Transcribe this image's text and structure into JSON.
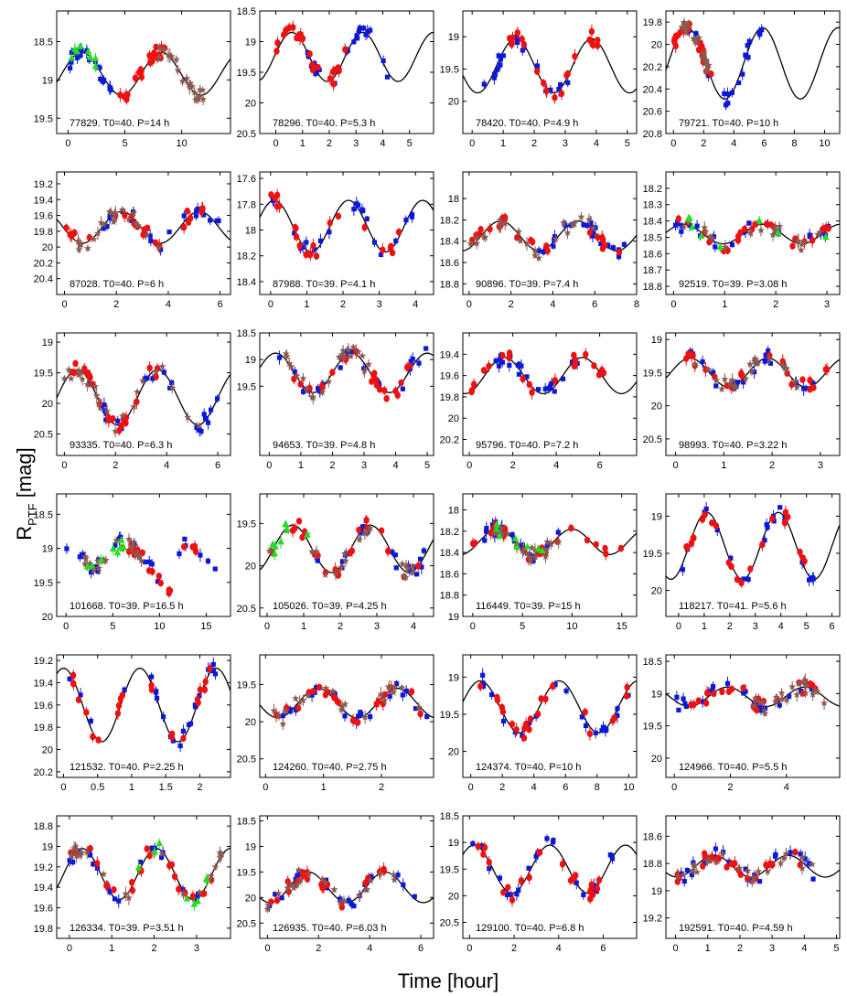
{
  "figure": {
    "ylabel_main": "R",
    "ylabel_sub": "PTF",
    "ylabel_unit": "[mag]",
    "xlabel": "Time [hour]",
    "legend_note": "blue squares, red circles, brown stars, green triangles = separate observing nights"
  },
  "colors": {
    "series": [
      "#0b18d6",
      "#ee1111",
      "#8a5a50",
      "#22dd22"
    ],
    "model": "#000000"
  },
  "chart_data": [
    {
      "type": "scatter",
      "label": "77829. T0=40. P=14 h",
      "id": "77829",
      "T0": 40,
      "period_h": 14,
      "xlim": [
        -1,
        14.3
      ],
      "xticks": [
        0,
        5,
        10
      ],
      "ylim": [
        18.1,
        19.7
      ],
      "yticks": [
        18.5,
        19,
        19.5
      ],
      "yticklabels": [
        "18.5",
        "19",
        "19.5"
      ],
      "model": {
        "mean": 18.92,
        "amp": 0.28,
        "period": 7,
        "phase": 1.2
      },
      "coverage": [
        [
          0,
          4
        ],
        [
          4.5,
          8.5
        ],
        [
          8,
          12
        ],
        [
          0,
          3
        ]
      ],
      "seed": 11
    },
    {
      "type": "scatter",
      "label": "78296. T0=40. P=5.3 h",
      "id": "78296",
      "T0": 40,
      "period_h": 5.3,
      "xlim": [
        -0.6,
        5.9
      ],
      "xticks": [
        0,
        1,
        2,
        3,
        4,
        5
      ],
      "ylim": [
        18.5,
        20.5
      ],
      "yticks": [
        18.5,
        19,
        19.5,
        20,
        20.5
      ],
      "yticklabels": [
        "18.5",
        "19",
        "19.5",
        "20",
        "20.5"
      ],
      "model": {
        "mean": 19.25,
        "amp": 0.4,
        "period": 2.65,
        "phase": 0.6
      },
      "coverage": [
        [
          1,
          4.8
        ],
        [
          0,
          2.6
        ]
      ],
      "seed": 12
    },
    {
      "type": "scatter",
      "label": "78420. T0=40. P=4.9 h",
      "id": "78420",
      "T0": 40,
      "period_h": 4.9,
      "xlim": [
        -0.3,
        5.3
      ],
      "xticks": [
        0,
        1,
        2,
        3,
        4,
        5
      ],
      "ylim": [
        18.6,
        20.5
      ],
      "yticks": [
        19,
        19.5,
        20
      ],
      "yticklabels": [
        "19",
        "19.5",
        "20"
      ],
      "model": {
        "mean": 19.45,
        "amp": 0.42,
        "period": 2.45,
        "phase": 1.4
      },
      "coverage": [
        [
          0.3,
          3.5
        ],
        [
          1.2,
          4.2
        ]
      ],
      "seed": 13
    },
    {
      "type": "scatter",
      "label": "79721. T0=40. P=10 h",
      "id": "79721",
      "T0": 40,
      "period_h": 10,
      "xlim": [
        -0.5,
        11
      ],
      "xticks": [
        0,
        2,
        4,
        6,
        8,
        10
      ],
      "ylim": [
        19.7,
        20.8
      ],
      "yticks": [
        19.8,
        20,
        20.2,
        20.4,
        20.6,
        20.8
      ],
      "yticklabels": [
        "19.8",
        "20",
        "20.2",
        "20.4",
        "20.6",
        "20.8"
      ],
      "model": {
        "mean": 20.17,
        "amp": 0.32,
        "period": 5,
        "phase": 0.9
      },
      "coverage": [
        [
          1,
          6
        ],
        [
          0,
          2.5
        ],
        [
          0.5,
          2.5
        ]
      ],
      "seed": 14
    },
    {
      "type": "scatter",
      "label": "87028. T0=40. P=6 h",
      "id": "87028",
      "T0": 40,
      "period_h": 6,
      "xlim": [
        -0.3,
        6.4
      ],
      "xticks": [
        0,
        2,
        4,
        6
      ],
      "ylim": [
        19.05,
        20.6
      ],
      "yticks": [
        19.2,
        19.4,
        19.6,
        19.8,
        20,
        20.2,
        20.4
      ],
      "yticklabels": [
        "19.2",
        "19.4",
        "19.6",
        "19.8",
        "20",
        "20.2",
        "20.4"
      ],
      "model": {
        "mean": 19.75,
        "amp": 0.2,
        "period": 3,
        "phase": 2.2
      },
      "coverage": [
        [
          1.5,
          6
        ],
        [
          0,
          5.5
        ],
        [
          0.5,
          4
        ]
      ],
      "seed": 15
    },
    {
      "type": "scatter",
      "label": "87988. T0=39. P=4.1 h",
      "id": "87988",
      "T0": 39,
      "period_h": 4.1,
      "xlim": [
        -0.3,
        4.5
      ],
      "xticks": [
        0,
        1,
        2,
        3,
        4
      ],
      "ylim": [
        17.55,
        18.5
      ],
      "yticks": [
        17.6,
        17.8,
        18,
        18.2,
        18.4
      ],
      "yticklabels": [
        "17.6",
        "17.8",
        "18",
        "18.2",
        "18.4"
      ],
      "model": {
        "mean": 17.97,
        "amp": 0.2,
        "period": 2.05,
        "phase": 0.1
      },
      "coverage": [
        [
          0,
          4
        ],
        [
          0,
          3.8
        ]
      ],
      "seed": 16
    },
    {
      "type": "scatter",
      "label": "90896. T0=39. P=7.4 h",
      "id": "90896",
      "T0": 39,
      "period_h": 7.4,
      "xlim": [
        -0.3,
        8
      ],
      "xticks": [
        0,
        2,
        4,
        6,
        8
      ],
      "ylim": [
        17.75,
        18.9
      ],
      "yticks": [
        18,
        18.2,
        18.4,
        18.6,
        18.8
      ],
      "yticklabels": [
        "18",
        "18.2",
        "18.4",
        "18.6",
        "18.8"
      ],
      "model": {
        "mean": 18.35,
        "amp": 0.14,
        "period": 3.7,
        "phase": 1.5
      },
      "coverage": [
        [
          3,
          7.5
        ],
        [
          0,
          7.3
        ],
        [
          0,
          6
        ]
      ],
      "seed": 17
    },
    {
      "type": "scatter",
      "label": "92519. T0=39. P=3.08 h",
      "id": "92519",
      "T0": 39,
      "period_h": 3.08,
      "xlim": [
        -0.15,
        3.25
      ],
      "xticks": [
        0,
        1,
        2,
        3
      ],
      "ylim": [
        18.1,
        18.85
      ],
      "yticks": [
        18.2,
        18.3,
        18.4,
        18.5,
        18.6,
        18.7,
        18.8
      ],
      "yticklabels": [
        "18.2",
        "18.3",
        "18.4",
        "18.5",
        "18.6",
        "18.7",
        "18.8"
      ],
      "model": {
        "mean": 18.48,
        "amp": 0.06,
        "period": 1.54,
        "phase": 0.2
      },
      "coverage": [
        [
          0,
          3.1
        ],
        [
          0,
          3.1
        ],
        [
          0,
          3.1
        ],
        [
          0.2,
          3
        ]
      ],
      "seed": 18
    },
    {
      "type": "scatter",
      "label": "93335. T0=40. P=6.3 h",
      "id": "93335",
      "T0": 40,
      "period_h": 6.3,
      "xlim": [
        -0.3,
        6.5
      ],
      "xticks": [
        0,
        2,
        4,
        6
      ],
      "ylim": [
        18.85,
        20.85
      ],
      "yticks": [
        19,
        19.5,
        20,
        20.5
      ],
      "yticklabels": [
        "19",
        "19.5",
        "20",
        "20.5"
      ],
      "model": {
        "mean": 19.9,
        "amp": 0.45,
        "period": 3.15,
        "phase": 0.5
      },
      "coverage": [
        [
          0.5,
          6
        ],
        [
          0,
          3.8
        ],
        [
          0,
          6
        ]
      ],
      "seed": 19
    },
    {
      "type": "scatter",
      "label": "94653. T0=39. P=4.8 h",
      "id": "94653",
      "T0": 39,
      "period_h": 4.8,
      "xlim": [
        -0.3,
        5.2
      ],
      "xticks": [
        0,
        1,
        2,
        3,
        4,
        5
      ],
      "ylim": [
        18.5,
        20.8
      ],
      "yticks": [
        18.5,
        19,
        19.5
      ],
      "yticklabels": [
        "18.5",
        "19",
        "19.5"
      ],
      "model": {
        "mean": 19.25,
        "amp": 0.37,
        "period": 2.4,
        "phase": 0.2
      },
      "coverage": [
        [
          0,
          5
        ],
        [
          0.3,
          4.5
        ],
        [
          0.3,
          3.2
        ]
      ],
      "seed": 20
    },
    {
      "type": "scatter",
      "label": "95796. T0=40. P=7.2 h",
      "id": "95796",
      "T0": 40,
      "period_h": 7.2,
      "xlim": [
        -0.3,
        7.7
      ],
      "xticks": [
        0,
        2,
        4,
        6
      ],
      "ylim": [
        19.2,
        20.35
      ],
      "yticks": [
        19.4,
        19.6,
        19.8,
        20,
        20.2
      ],
      "yticklabels": [
        "19.4",
        "19.6",
        "19.8",
        "20",
        "20.2"
      ],
      "model": {
        "mean": 19.6,
        "amp": 0.17,
        "period": 3.6,
        "phase": 1.6
      },
      "coverage": [
        [
          1,
          5
        ],
        [
          0,
          7
        ]
      ],
      "seed": 21
    },
    {
      "type": "scatter",
      "label": "98993. T0=40. P=3.22 h",
      "id": "98993",
      "T0": 40,
      "period_h": 3.22,
      "xlim": [
        -0.2,
        3.4
      ],
      "xticks": [
        0,
        1,
        2,
        3
      ],
      "ylim": [
        18.9,
        20.75
      ],
      "yticks": [
        19,
        19.5,
        20,
        20.5
      ],
      "yticklabels": [
        "19",
        "19.5",
        "20",
        "20.5"
      ],
      "model": {
        "mean": 19.5,
        "amp": 0.22,
        "period": 1.61,
        "phase": 0.3
      },
      "coverage": [
        [
          0.3,
          3
        ],
        [
          0.2,
          3.2
        ],
        [
          0.3,
          3
        ]
      ],
      "seed": 22
    },
    {
      "type": "scatter",
      "label": "101668. T0=39. P=16.5 h",
      "id": "101668",
      "T0": 39,
      "period_h": 16.5,
      "xlim": [
        -1,
        17.6
      ],
      "xticks": [
        0,
        5,
        10,
        15
      ],
      "ylim": [
        18.2,
        20
      ],
      "yticks": [
        18.5,
        19,
        19.5,
        20
      ],
      "yticklabels": [
        "18.5",
        "19",
        "19.5",
        "20"
      ],
      "model": null,
      "coverage": [
        [
          0,
          17
        ],
        [
          6,
          14.5
        ],
        [
          2,
          9
        ],
        [
          1,
          7
        ]
      ],
      "seed": 23
    },
    {
      "type": "scatter",
      "label": "105026. T0=39. P=4.25 h",
      "id": "105026",
      "T0": 39,
      "period_h": 4.25,
      "xlim": [
        -0.2,
        4.55
      ],
      "xticks": [
        0,
        1,
        2,
        3,
        4
      ],
      "ylim": [
        19.15,
        20.6
      ],
      "yticks": [
        19.5,
        20,
        20.5
      ],
      "yticklabels": [
        "19.5",
        "20",
        "20.5"
      ],
      "model": {
        "mean": 19.8,
        "amp": 0.28,
        "period": 2.12,
        "phase": 0.7
      },
      "coverage": [
        [
          0,
          4.3
        ],
        [
          0,
          4.2
        ],
        [
          0,
          4
        ],
        [
          0,
          2
        ]
      ],
      "seed": 24
    },
    {
      "type": "scatter",
      "label": "116449. T0=39. P=15 h",
      "id": "116449",
      "T0": 39,
      "period_h": 15,
      "xlim": [
        -1,
        16.5
      ],
      "xticks": [
        0,
        5,
        10,
        15
      ],
      "ylim": [
        17.85,
        19
      ],
      "yticks": [
        18,
        18.2,
        18.4,
        18.6,
        18.8,
        19
      ],
      "yticklabels": [
        "18",
        "18.2",
        "18.4",
        "18.6",
        "18.8",
        "19"
      ],
      "model": {
        "mean": 18.3,
        "amp": 0.12,
        "period": 7.5,
        "phase": 2.5
      },
      "coverage": [
        [
          0,
          9
        ],
        [
          0,
          15
        ],
        [
          2,
          9
        ],
        [
          1,
          9
        ]
      ],
      "seed": 25
    },
    {
      "type": "scatter",
      "label": "118217. T0=41. P=5.6 h",
      "id": "118217",
      "T0": 41,
      "period_h": 5.6,
      "xlim": [
        -0.5,
        6.3
      ],
      "xticks": [
        0,
        1,
        2,
        3,
        4,
        5,
        6
      ],
      "ylim": [
        18.7,
        20.35
      ],
      "yticks": [
        19,
        19.5,
        20
      ],
      "yticklabels": [
        "19",
        "19.5",
        "20"
      ],
      "model": {
        "mean": 19.4,
        "amp": 0.45,
        "period": 2.8,
        "phase": 1.1
      },
      "coverage": [
        [
          0,
          5.5
        ],
        [
          0,
          5.5
        ]
      ],
      "seed": 26
    },
    {
      "type": "scatter",
      "label": "121532. T0=40. P=2.25 h",
      "id": "121532",
      "T0": 40,
      "period_h": 2.25,
      "xlim": [
        -0.1,
        2.45
      ],
      "xticks": [
        0,
        0.5,
        1,
        1.5,
        2
      ],
      "ylim": [
        19.15,
        20.25
      ],
      "yticks": [
        19.2,
        19.4,
        19.6,
        19.8,
        20,
        20.2
      ],
      "yticklabels": [
        "19.2",
        "19.4",
        "19.6",
        "19.8",
        "20",
        "20.2"
      ],
      "model": {
        "mean": 19.6,
        "amp": 0.33,
        "period": 1.12,
        "phase": 0.0
      },
      "coverage": [
        [
          0,
          2.3
        ],
        [
          0,
          2.2
        ]
      ],
      "seed": 27
    },
    {
      "type": "scatter",
      "label": "124260. T0=40. P=2.75 h",
      "id": "124260",
      "T0": 40,
      "period_h": 2.75,
      "xlim": [
        -0.1,
        2.9
      ],
      "xticks": [
        0,
        1,
        2
      ],
      "ylim": [
        19.1,
        20.75
      ],
      "yticks": [
        19.5,
        20,
        20.5
      ],
      "yticklabels": [
        "19.5",
        "20",
        "20.5"
      ],
      "model": {
        "mean": 19.75,
        "amp": 0.2,
        "period": 1.37,
        "phase": 0.9
      },
      "coverage": [
        [
          0,
          2.8
        ],
        [
          0,
          2.8
        ],
        [
          0,
          2.8
        ]
      ],
      "seed": 28
    },
    {
      "type": "scatter",
      "label": "124374. T0=40. P=10 h",
      "id": "124374",
      "T0": 40,
      "period_h": 10,
      "xlim": [
        -0.5,
        10.5
      ],
      "xticks": [
        0,
        2,
        4,
        6,
        8,
        10
      ],
      "ylim": [
        18.7,
        20.35
      ],
      "yticks": [
        19,
        19.5,
        20
      ],
      "yticklabels": [
        "19",
        "19.5",
        "20"
      ],
      "model": {
        "mean": 19.4,
        "amp": 0.35,
        "period": 5,
        "phase": 0.6
      },
      "coverage": [
        [
          0.5,
          10
        ],
        [
          0.5,
          10
        ]
      ],
      "seed": 29
    },
    {
      "type": "scatter",
      "label": "124966. T0=40. P=5.5 h",
      "id": "124966",
      "T0": 40,
      "period_h": 5.5,
      "xlim": [
        -0.3,
        5.9
      ],
      "xticks": [
        0,
        2,
        4
      ],
      "ylim": [
        18.4,
        20.3
      ],
      "yticks": [
        18.5,
        19,
        19.5,
        20
      ],
      "yticklabels": [
        "18.5",
        "19",
        "19.5",
        "20"
      ],
      "model": {
        "mean": 19.05,
        "amp": 0.15,
        "period": 2.75,
        "phase": 1.9
      },
      "coverage": [
        [
          0,
          5
        ],
        [
          0.5,
          5.3
        ],
        [
          2.5,
          5.5
        ]
      ],
      "seed": 30
    },
    {
      "type": "scatter",
      "label": "126334. T0=39. P=3.51 h",
      "id": "126334",
      "T0": 39,
      "period_h": 3.51,
      "xlim": [
        -0.3,
        3.8
      ],
      "xticks": [
        0,
        1,
        2,
        3
      ],
      "ylim": [
        18.7,
        19.9
      ],
      "yticks": [
        18.8,
        19,
        19.2,
        19.4,
        19.6,
        19.8
      ],
      "yticklabels": [
        "18.8",
        "19",
        "19.2",
        "19.4",
        "19.6",
        "19.8"
      ],
      "model": {
        "mean": 19.27,
        "amp": 0.25,
        "period": 1.75,
        "phase": 0.3
      },
      "coverage": [
        [
          0,
          3.6
        ],
        [
          0,
          3.5
        ],
        [
          0,
          3.6
        ],
        [
          1.6,
          3.4
        ]
      ],
      "seed": 31
    },
    {
      "type": "scatter",
      "label": "126935. T0=40. P=6.03 h",
      "id": "126935",
      "T0": 40,
      "period_h": 6.03,
      "xlim": [
        -0.3,
        6.5
      ],
      "xticks": [
        0,
        2,
        4,
        6
      ],
      "ylim": [
        18.4,
        20.8
      ],
      "yticks": [
        18.5,
        19,
        19.5,
        20,
        20.5
      ],
      "yticklabels": [
        "18.5",
        "19",
        "19.5",
        "20",
        "20.5"
      ],
      "model": {
        "mean": 19.8,
        "amp": 0.3,
        "period": 3.0,
        "phase": 1.6
      },
      "coverage": [
        [
          0,
          5.8
        ],
        [
          0,
          5
        ],
        [
          0,
          5
        ]
      ],
      "seed": 32
    },
    {
      "type": "scatter",
      "label": "129100. T0=40. P=6.8 h",
      "id": "129100",
      "T0": 40,
      "period_h": 6.8,
      "xlim": [
        -0.3,
        7.5
      ],
      "xticks": [
        0,
        2,
        4,
        6
      ],
      "ylim": [
        18.5,
        20.8
      ],
      "yticks": [
        18.5,
        19,
        19.5,
        20,
        20.5
      ],
      "yticklabels": [
        "18.5",
        "19",
        "19.5",
        "20",
        "20.5"
      ],
      "model": {
        "mean": 19.5,
        "amp": 0.45,
        "period": 3.4,
        "phase": 0.2
      },
      "coverage": [
        [
          0,
          7
        ],
        [
          0,
          6
        ]
      ],
      "seed": 33
    },
    {
      "type": "scatter",
      "label": "192591. T0=40. P=4.59 h",
      "id": "192591",
      "T0": 40,
      "period_h": 4.59,
      "xlim": [
        -0.3,
        5.1
      ],
      "xticks": [
        0,
        1,
        2,
        3,
        4,
        5
      ],
      "ylim": [
        18.45,
        19.35
      ],
      "yticks": [
        18.6,
        18.8,
        19,
        19.2
      ],
      "yticklabels": [
        "18.6",
        "18.8",
        "19",
        "19.2"
      ],
      "model": {
        "mean": 18.82,
        "amp": 0.08,
        "period": 2.3,
        "phase": 1.2
      },
      "coverage": [
        [
          0,
          4.5
        ],
        [
          0,
          4
        ],
        [
          0,
          4.5
        ]
      ],
      "seed": 34
    }
  ]
}
